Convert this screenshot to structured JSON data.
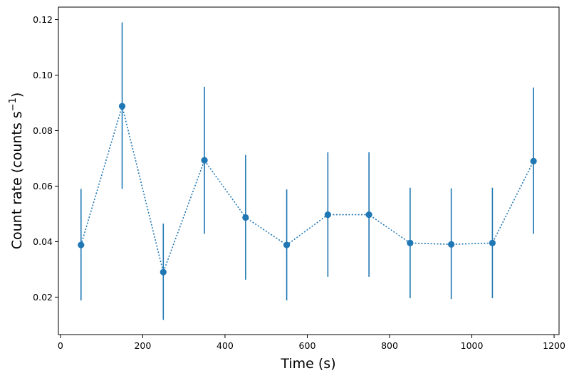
{
  "chart_data": {
    "type": "scatter",
    "title": "",
    "xlabel": "Time (s)",
    "ylabel_main": "Count rate (counts s",
    "ylabel_sup": "−1",
    "ylabel_close": ")",
    "xlim": [
      -5,
      1212
    ],
    "ylim": [
      0.0065,
      0.1245
    ],
    "xticks": [
      0,
      200,
      400,
      600,
      800,
      1000,
      1200
    ],
    "xtick_labels": [
      "0",
      "200",
      "400",
      "600",
      "800",
      "1000",
      "1200"
    ],
    "yticks": [
      0.02,
      0.04,
      0.06,
      0.08,
      0.1,
      0.12
    ],
    "ytick_labels": [
      "0.02",
      "0.04",
      "0.06",
      "0.08",
      "0.10",
      "0.12"
    ],
    "grid": false,
    "color": "#1f77b4",
    "linestyle": "dotted",
    "x": [
      50,
      150,
      250,
      350,
      450,
      550,
      650,
      750,
      850,
      950,
      1050,
      1150
    ],
    "y": [
      0.0388,
      0.0888,
      0.029,
      0.0693,
      0.0487,
      0.0388,
      0.0497,
      0.0497,
      0.0395,
      0.039,
      0.0395,
      0.069
    ],
    "yerr_low": [
      0.0188,
      0.059,
      0.0118,
      0.0428,
      0.0263,
      0.0188,
      0.0273,
      0.0273,
      0.0196,
      0.0193,
      0.0196,
      0.0428
    ],
    "yerr_high": [
      0.059,
      0.119,
      0.0465,
      0.0958,
      0.0712,
      0.0588,
      0.0722,
      0.0722,
      0.0594,
      0.0592,
      0.0594,
      0.0955
    ]
  }
}
